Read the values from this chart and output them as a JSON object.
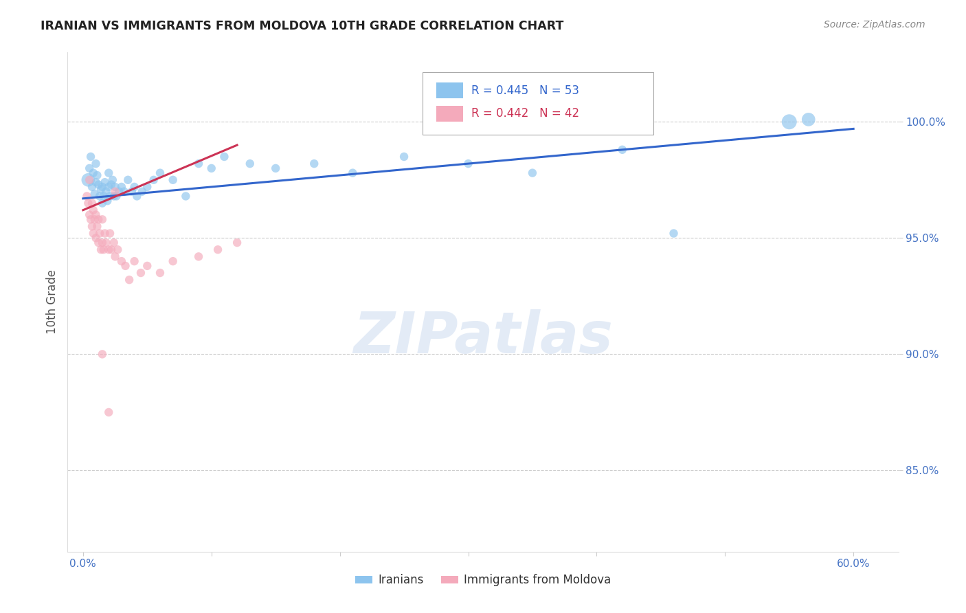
{
  "title": "IRANIAN VS IMMIGRANTS FROM MOLDOVA 10TH GRADE CORRELATION CHART",
  "source": "Source: ZipAtlas.com",
  "ylabel_label": "10th Grade",
  "iranians_R": 0.445,
  "iranians_N": 53,
  "moldova_R": 0.442,
  "moldova_N": 42,
  "blue_color": "#8DC4EE",
  "pink_color": "#F4AABB",
  "blue_line_color": "#3366CC",
  "pink_line_color": "#CC3355",
  "blue_text_color": "#3366CC",
  "pink_text_color": "#CC3355",
  "grid_color": "#CCCCCC",
  "bg_color": "#FFFFFF",
  "title_color": "#222222",
  "axis_color": "#4472C4",
  "xlim": [
    -0.012,
    0.635
  ],
  "ylim": [
    0.815,
    1.03
  ],
  "y_ticks": [
    0.85,
    0.9,
    0.95,
    1.0
  ],
  "y_tick_labels": [
    "85.0%",
    "90.0%",
    "95.0%",
    "100.0%"
  ],
  "x_ticks": [
    0.0,
    0.1,
    0.2,
    0.3,
    0.4,
    0.5,
    0.6
  ],
  "x_tick_labels": [
    "0.0%",
    "",
    "",
    "",
    "",
    "",
    "60.0%"
  ],
  "iranians_x": [
    0.004,
    0.005,
    0.006,
    0.007,
    0.008,
    0.009,
    0.01,
    0.01,
    0.011,
    0.012,
    0.013,
    0.014,
    0.015,
    0.015,
    0.016,
    0.017,
    0.018,
    0.019,
    0.02,
    0.02,
    0.021,
    0.022,
    0.023,
    0.024,
    0.025,
    0.026,
    0.028,
    0.03,
    0.032,
    0.035,
    0.038,
    0.04,
    0.042,
    0.046,
    0.05,
    0.055,
    0.06,
    0.07,
    0.08,
    0.09,
    0.1,
    0.11,
    0.13,
    0.15,
    0.18,
    0.21,
    0.25,
    0.3,
    0.35,
    0.42,
    0.46,
    0.55,
    0.565
  ],
  "iranians_y": [
    0.975,
    0.98,
    0.985,
    0.972,
    0.978,
    0.969,
    0.974,
    0.982,
    0.977,
    0.973,
    0.968,
    0.971,
    0.965,
    0.972,
    0.968,
    0.974,
    0.97,
    0.966,
    0.972,
    0.978,
    0.968,
    0.973,
    0.975,
    0.968,
    0.972,
    0.968,
    0.97,
    0.972,
    0.97,
    0.975,
    0.97,
    0.972,
    0.968,
    0.97,
    0.972,
    0.975,
    0.978,
    0.975,
    0.968,
    0.982,
    0.98,
    0.985,
    0.982,
    0.98,
    0.982,
    0.978,
    0.985,
    0.982,
    0.978,
    0.988,
    0.952,
    1.0,
    1.001
  ],
  "iranians_sizes": [
    200,
    80,
    80,
    80,
    80,
    80,
    80,
    80,
    80,
    80,
    80,
    80,
    80,
    80,
    80,
    80,
    80,
    80,
    80,
    80,
    80,
    80,
    80,
    80,
    80,
    80,
    80,
    80,
    80,
    80,
    80,
    80,
    80,
    80,
    80,
    80,
    80,
    80,
    80,
    80,
    80,
    80,
    80,
    80,
    80,
    80,
    80,
    80,
    80,
    80,
    80,
    250,
    200
  ],
  "moldova_x": [
    0.003,
    0.004,
    0.005,
    0.005,
    0.006,
    0.007,
    0.007,
    0.008,
    0.008,
    0.009,
    0.01,
    0.01,
    0.011,
    0.012,
    0.012,
    0.013,
    0.014,
    0.015,
    0.015,
    0.016,
    0.017,
    0.018,
    0.02,
    0.021,
    0.022,
    0.024,
    0.025,
    0.027,
    0.03,
    0.033,
    0.036,
    0.04,
    0.045,
    0.05,
    0.06,
    0.07,
    0.09,
    0.105,
    0.12,
    0.015,
    0.02,
    0.025
  ],
  "moldova_y": [
    0.968,
    0.965,
    0.975,
    0.96,
    0.958,
    0.965,
    0.955,
    0.962,
    0.952,
    0.958,
    0.95,
    0.96,
    0.955,
    0.948,
    0.958,
    0.952,
    0.945,
    0.948,
    0.958,
    0.945,
    0.952,
    0.948,
    0.945,
    0.952,
    0.945,
    0.948,
    0.942,
    0.945,
    0.94,
    0.938,
    0.932,
    0.94,
    0.935,
    0.938,
    0.935,
    0.94,
    0.942,
    0.945,
    0.948,
    0.9,
    0.875,
    0.97
  ],
  "moldova_sizes": [
    80,
    80,
    80,
    80,
    80,
    80,
    80,
    80,
    80,
    80,
    80,
    80,
    80,
    80,
    80,
    80,
    80,
    80,
    80,
    80,
    80,
    80,
    80,
    80,
    80,
    80,
    80,
    80,
    80,
    80,
    80,
    80,
    80,
    80,
    80,
    80,
    80,
    80,
    80,
    80,
    80,
    80
  ],
  "blue_line_x0": 0.0,
  "blue_line_x1": 0.6,
  "blue_line_y0": 0.967,
  "blue_line_y1": 0.997,
  "pink_line_x0": 0.0,
  "pink_line_x1": 0.12,
  "pink_line_y0": 0.962,
  "pink_line_y1": 0.99
}
